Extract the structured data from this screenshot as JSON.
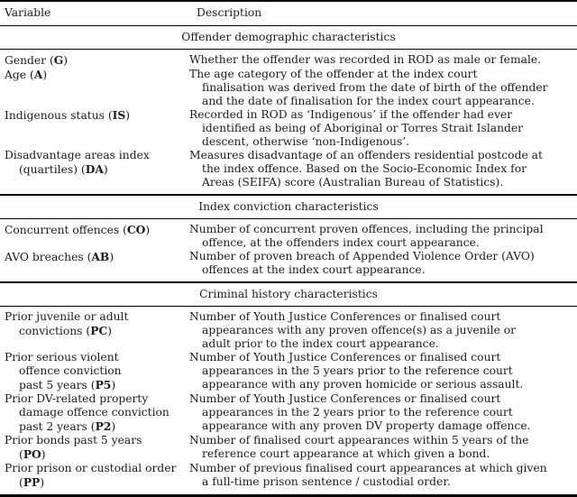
{
  "page": {
    "background_color": "#ffffff",
    "text_color": "#1b1b1b",
    "rule_color": "#000000"
  },
  "table": {
    "columns": [
      {
        "label": "Variable"
      },
      {
        "label": "Description"
      }
    ],
    "sections": [
      {
        "title": "Offender demographic characteristics",
        "rows": [
          {
            "abbr": "G",
            "var": [
              {
                "segs": [
                  {
                    "t": "Gender ("
                  },
                  {
                    "t": "G",
                    "b": 1
                  },
                  {
                    "t": ")"
                  }
                ]
              }
            ],
            "desc": [
              "Whether the offender was recorded in ROD as male or female."
            ]
          },
          {
            "abbr": "A",
            "var": [
              {
                "segs": [
                  {
                    "t": "Age ("
                  },
                  {
                    "t": "A",
                    "b": 1
                  },
                  {
                    "t": ")"
                  }
                ]
              }
            ],
            "desc": [
              "The age category of the offender at the index court",
              "finalisation was derived from the date of birth of the offender",
              "and the date of finalisation for the index court appearance."
            ]
          },
          {
            "abbr": "IS",
            "var": [
              {
                "segs": [
                  {
                    "t": "Indigenous status ("
                  },
                  {
                    "t": "IS",
                    "b": 1
                  },
                  {
                    "t": ")"
                  }
                ]
              }
            ],
            "desc": [
              "Recorded in ROD as ‘Indigenous’ if the offender had ever",
              "identified as being of Aboriginal or Torres Strait Islander",
              "descent, otherwise ‘non-Indigenous’."
            ]
          },
          {
            "abbr": "DA",
            "var": [
              {
                "segs": [
                  {
                    "t": "Disadvantage areas index"
                  }
                ]
              },
              {
                "segs": [
                  {
                    "t": "(quartiles) ("
                  },
                  {
                    "t": "DA",
                    "b": 1
                  },
                  {
                    "t": ")"
                  }
                ]
              }
            ],
            "desc": [
              "Measures disadvantage of an offenders residential postcode at",
              "the index offence. Based on the Socio-Economic Index for",
              "Areas (SEIFA) score (Australian Bureau of Statistics)."
            ]
          }
        ]
      },
      {
        "title": "Index conviction characteristics",
        "rows": [
          {
            "abbr": "CO",
            "var": [
              {
                "segs": [
                  {
                    "t": "Concurrent offences ("
                  },
                  {
                    "t": "CO",
                    "b": 1
                  },
                  {
                    "t": ")"
                  }
                ]
              }
            ],
            "desc": [
              "Number of concurrent proven offences, including the principal",
              "offence, at the offenders index court appearance."
            ]
          },
          {
            "abbr": "AB",
            "var": [
              {
                "segs": [
                  {
                    "t": "AVO breaches ("
                  },
                  {
                    "t": "AB",
                    "b": 1
                  },
                  {
                    "t": ")"
                  }
                ]
              }
            ],
            "desc": [
              "Number of proven breach of Appended Violence Order (AVO)",
              "offences at the index court appearance."
            ]
          }
        ]
      },
      {
        "title": "Criminal history characteristics",
        "rows": [
          {
            "abbr": "PC",
            "var": [
              {
                "segs": [
                  {
                    "t": "Prior juvenile or adult"
                  }
                ]
              },
              {
                "segs": [
                  {
                    "t": "convictions ("
                  },
                  {
                    "t": "PC",
                    "b": 1
                  },
                  {
                    "t": ")"
                  }
                ]
              }
            ],
            "desc": [
              "Number of Youth Justice Conferences or finalised court",
              "appearances with any proven offence(s) as a juvenile or",
              "adult prior to the index court appearance."
            ]
          },
          {
            "abbr": "P5",
            "var": [
              {
                "segs": [
                  {
                    "t": "Prior serious violent"
                  }
                ]
              },
              {
                "segs": [
                  {
                    "t": "offence conviction"
                  }
                ]
              },
              {
                "segs": [
                  {
                    "t": "past 5 years ("
                  },
                  {
                    "t": "P5",
                    "b": 1
                  },
                  {
                    "t": ")"
                  }
                ]
              }
            ],
            "desc": [
              "Number of Youth Justice Conferences or finalised court",
              "appearances in the 5 years prior to the reference court",
              "appearance with any proven homicide or serious assault."
            ]
          },
          {
            "abbr": "P2",
            "var": [
              {
                "segs": [
                  {
                    "t": "Prior DV-related property"
                  }
                ]
              },
              {
                "segs": [
                  {
                    "t": "damage offence conviction"
                  }
                ]
              },
              {
                "segs": [
                  {
                    "t": "past 2 years ("
                  },
                  {
                    "t": "P2",
                    "b": 1
                  },
                  {
                    "t": ")"
                  }
                ]
              }
            ],
            "desc": [
              "Number of Youth Justice Conferences or finalised court",
              "appearances in the 2 years prior to the reference court",
              "appearance with any proven DV property damage offence."
            ]
          },
          {
            "abbr": "PO",
            "var": [
              {
                "segs": [
                  {
                    "t": "Prior bonds past 5 years"
                  }
                ]
              },
              {
                "segs": [
                  {
                    "t": "("
                  },
                  {
                    "t": "PO",
                    "b": 1
                  },
                  {
                    "t": ")"
                  }
                ]
              }
            ],
            "desc": [
              "Number of finalised court appearances within 5 years of the",
              "reference court appearance at which given a bond."
            ]
          },
          {
            "abbr": "PP",
            "var": [
              {
                "segs": [
                  {
                    "t": "Prior prison or custodial order"
                  }
                ]
              },
              {
                "segs": [
                  {
                    "t": "("
                  },
                  {
                    "t": "PP",
                    "b": 1
                  },
                  {
                    "t": ")"
                  }
                ]
              }
            ],
            "desc": [
              "Number of previous finalised court appearances at which given",
              "a full-time prison sentence / custodial order."
            ]
          }
        ]
      }
    ]
  }
}
